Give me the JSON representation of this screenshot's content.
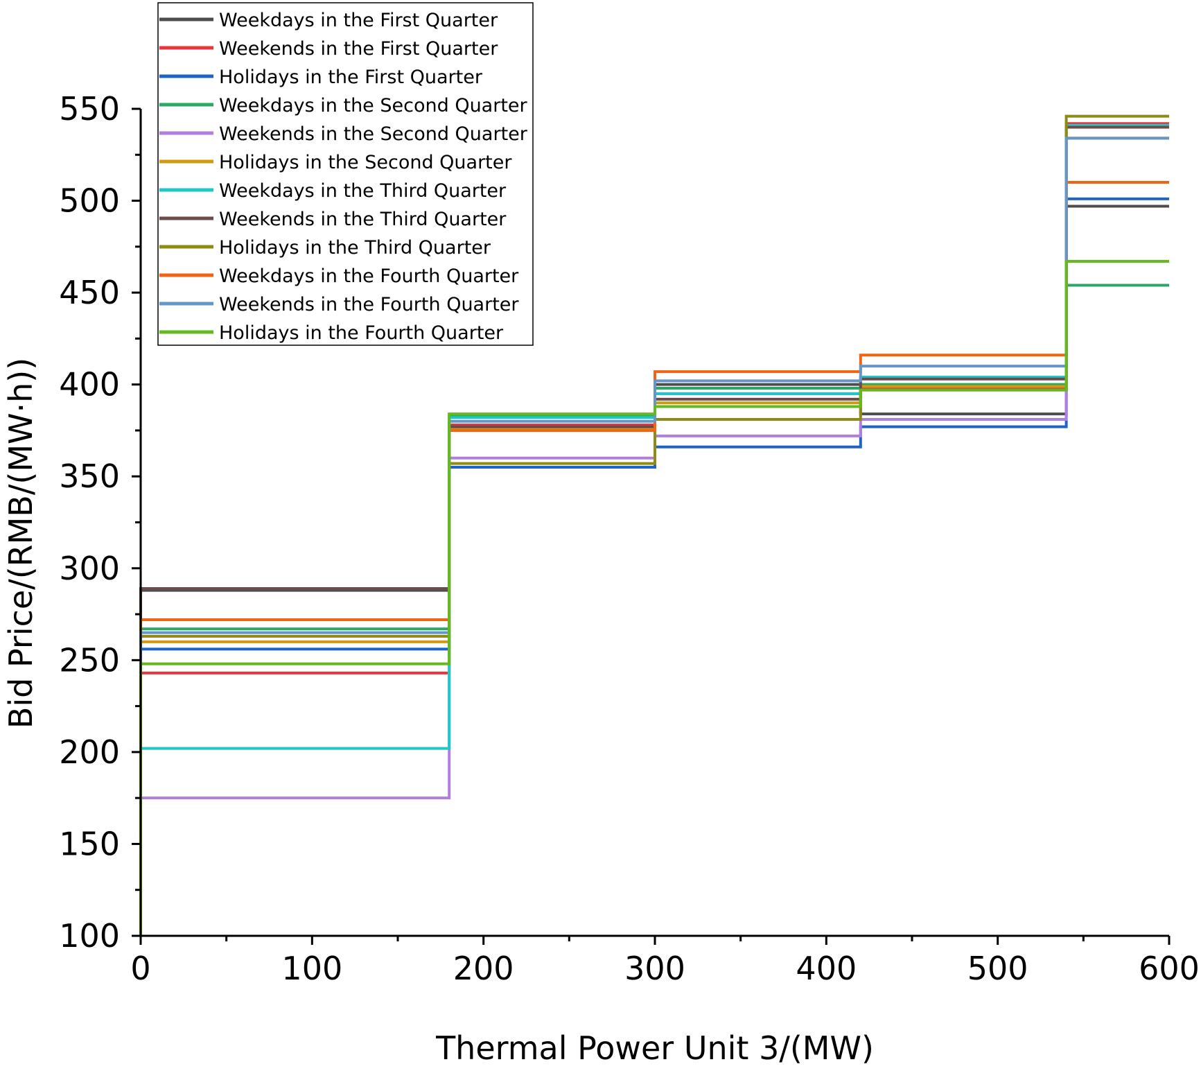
{
  "chart_data": {
    "type": "line",
    "step": true,
    "xlabel": "Thermal Power Unit 3/(MW)",
    "ylabel": "Bid Price/(RMB/(MW·h))",
    "xlim": [
      0,
      600
    ],
    "ylim": [
      100,
      550
    ],
    "x_ticks": [
      0,
      100,
      200,
      300,
      400,
      500,
      600
    ],
    "y_ticks": [
      100,
      150,
      200,
      250,
      300,
      350,
      400,
      450,
      500,
      550
    ],
    "grid": false,
    "legend_position": "top-left",
    "segment_bounds": [
      0,
      180,
      300,
      420,
      540,
      600
    ],
    "series": [
      {
        "name": "Weekdays in the First Quarter",
        "color": "#4d4d4d",
        "values": [
          288,
          376,
          400,
          384,
          497
        ]
      },
      {
        "name": "Weekends in the First Quarter",
        "color": "#e8363d",
        "values": [
          243,
          378,
          395,
          398,
          542
        ]
      },
      {
        "name": "Holidays in the First Quarter",
        "color": "#1e64c8",
        "values": [
          256,
          355,
          366,
          377,
          501
        ]
      },
      {
        "name": "Weekdays in the Second Quarter",
        "color": "#2aa864",
        "values": [
          267,
          383,
          398,
          400,
          454
        ]
      },
      {
        "name": "Weekends in the Second Quarter",
        "color": "#b07de0",
        "values": [
          175,
          360,
          372,
          381,
          534
        ]
      },
      {
        "name": "Holidays in the Second Quarter",
        "color": "#d29b0f",
        "values": [
          260,
          376,
          390,
          399,
          534
        ]
      },
      {
        "name": "Weekdays in the Third Quarter",
        "color": "#1ec8c8",
        "values": [
          202,
          382,
          395,
          404,
          541
        ]
      },
      {
        "name": "Weekends in the Third Quarter",
        "color": "#6e4b4b",
        "values": [
          289,
          377,
          392,
          403,
          540
        ]
      },
      {
        "name": "Holidays in the Third Quarter",
        "color": "#8c8c14",
        "values": [
          263,
          357,
          381,
          397,
          546
        ]
      },
      {
        "name": "Weekdays in the Fourth Quarter",
        "color": "#f06414",
        "values": [
          272,
          375,
          407,
          416,
          510
        ]
      },
      {
        "name": "Weekends in the Fourth Quarter",
        "color": "#6496c8",
        "values": [
          265,
          380,
          402,
          410,
          534
        ]
      },
      {
        "name": "Holidays in the Fourth Quarter",
        "color": "#64b91e",
        "values": [
          248,
          384,
          388,
          397,
          467
        ]
      }
    ]
  }
}
